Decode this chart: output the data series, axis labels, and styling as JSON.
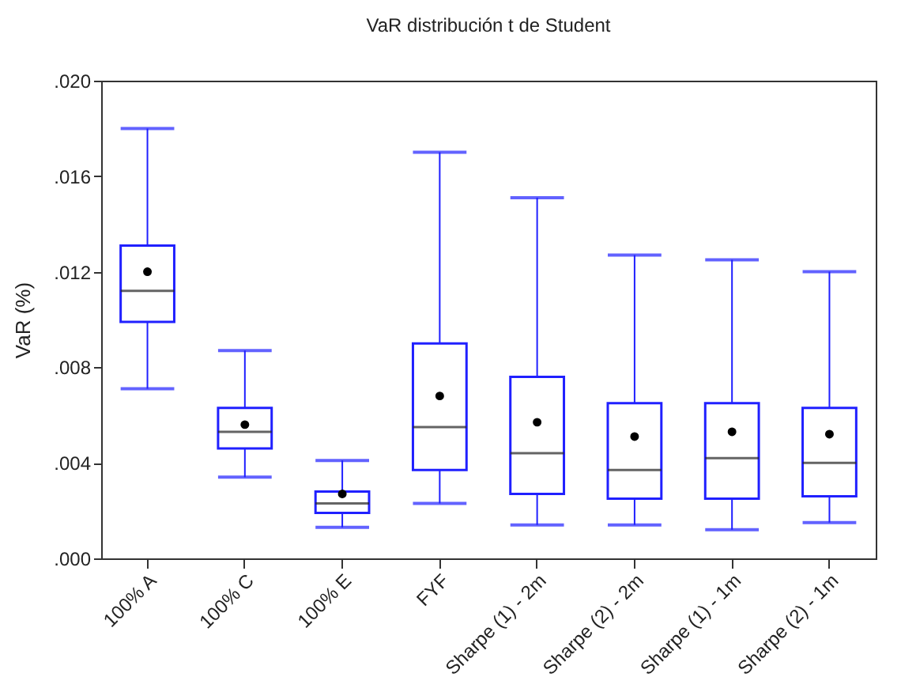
{
  "chart_data": {
    "type": "box",
    "title": "VaR distribución t de Student",
    "ylabel": "VaR (%)",
    "categories": [
      "100% A",
      "100% C",
      "100% E",
      "FYF",
      "Sharpe (1) - 2m",
      "Sharpe (2) - 2m",
      "Sharpe (1) - 1m",
      "Sharpe (2) - 1m"
    ],
    "ylim": [
      0,
      0.02
    ],
    "yticks": [
      {
        "value": 0,
        "label": ".000"
      },
      {
        "value": 0.004,
        "label": ".004"
      },
      {
        "value": 0.008,
        "label": ".008"
      },
      {
        "value": 0.012,
        "label": ".012"
      },
      {
        "value": 0.016,
        "label": ".016"
      },
      {
        "value": 0.02,
        "label": ".020"
      }
    ],
    "grid": false,
    "series": [
      {
        "color": "#2020ff",
        "boxes": [
          {
            "low": 0.0071,
            "q1": 0.0099,
            "median": 0.0112,
            "q3": 0.0131,
            "high": 0.018,
            "mean": 0.012
          },
          {
            "low": 0.0034,
            "q1": 0.0046,
            "median": 0.0053,
            "q3": 0.0063,
            "high": 0.0087,
            "mean": 0.0056
          },
          {
            "low": 0.0013,
            "q1": 0.0019,
            "median": 0.0023,
            "q3": 0.0028,
            "high": 0.0041,
            "mean": 0.0027
          },
          {
            "low": 0.0023,
            "q1": 0.0037,
            "median": 0.0055,
            "q3": 0.009,
            "high": 0.017,
            "mean": 0.0068
          },
          {
            "low": 0.0014,
            "q1": 0.0027,
            "median": 0.0044,
            "q3": 0.0076,
            "high": 0.0151,
            "mean": 0.0057
          },
          {
            "low": 0.0014,
            "q1": 0.0025,
            "median": 0.0037,
            "q3": 0.0065,
            "high": 0.0127,
            "mean": 0.0051
          },
          {
            "low": 0.0012,
            "q1": 0.0025,
            "median": 0.0042,
            "q3": 0.0065,
            "high": 0.0125,
            "mean": 0.0053
          },
          {
            "low": 0.0015,
            "q1": 0.0026,
            "median": 0.004,
            "q3": 0.0063,
            "high": 0.012,
            "mean": 0.0052
          }
        ]
      }
    ]
  }
}
